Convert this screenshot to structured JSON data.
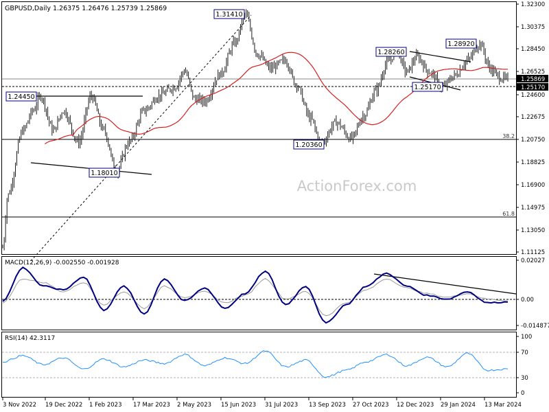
{
  "main": {
    "symbol_line": "GBPUSD,Daily  1.26375 1.26476 1.25739 1.25869",
    "watermark": "ActionForex.com",
    "price_axis": [
      "1.32300",
      "1.30375",
      "1.28450",
      "1.26525",
      "1.24600",
      "1.22675",
      "1.20750",
      "1.18825",
      "1.16900",
      "1.14975",
      "1.13050",
      "1.11125"
    ],
    "current_price": "1.25869",
    "support_price": "1.25170",
    "annotations": {
      "peak": "1.31410",
      "high_dec": "1.28260",
      "high_mar": "1.28920",
      "low_dec": "1.25170",
      "low_oct": "1.20360",
      "low_feb": "1.18010",
      "high_nov": "1.24450"
    },
    "fib_382": "38.2",
    "fib_618": "61.8"
  },
  "macd": {
    "title": "MACD(12,26,9) -0.002550 -0.001928",
    "axis": [
      "0.02027",
      "0.00",
      "-0.014877"
    ]
  },
  "rsi": {
    "title": "RSI(14) 42.3117",
    "axis": [
      "100",
      "70",
      "30",
      "0"
    ]
  },
  "time_axis": [
    "3 Nov 2022",
    "19 Dec 2022",
    "1 Feb 2023",
    "17 Mar 2023",
    "2 May 2023",
    "15 Jun 2023",
    "31 Jul 2023",
    "13 Sep 2023",
    "27 Oct 2023",
    "12 Dec 2023",
    "29 Jan 2024",
    "13 Mar 2024"
  ],
  "colors": {
    "candles": "#1b1b1b",
    "ma": "#d41f1f",
    "macd": "#000080",
    "signal": "#9a9a9a",
    "rsi": "#1e90ff",
    "label_border": "#000080"
  },
  "chart_data": [
    {
      "type": "candlestick",
      "title": "GBPUSD,Daily",
      "x": [
        "3 Nov 2022",
        "19 Dec 2022",
        "1 Feb 2023",
        "17 Mar 2023",
        "2 May 2023",
        "15 Jun 2023",
        "31 Jul 2023",
        "13 Sep 2023",
        "27 Oct 2023",
        "12 Dec 2023",
        "29 Jan 2024",
        "13 Mar 2024"
      ],
      "ylim": [
        1.104,
        1.3265
      ],
      "key_points": [
        {
          "date": "Nov 2022",
          "close": 1.12
        },
        {
          "date": "Dec 2022",
          "high": 1.2445
        },
        {
          "date": "Mar 2023",
          "low": 1.1801
        },
        {
          "date": "Jul 2023",
          "high": 1.3141
        },
        {
          "date": "Oct 2023",
          "low": 1.2036
        },
        {
          "date": "Dec 2023",
          "high": 1.2826
        },
        {
          "date": "Feb 2024",
          "low": 1.2517
        },
        {
          "date": "Mar 2024",
          "high": 1.2892
        },
        {
          "date": "Mar 2024",
          "close": 1.25869
        }
      ],
      "horizontal_levels": [
        1.2445,
        1.2517,
        1.2587,
        1.2075,
        1.143
      ],
      "fibonacci": {
        "38.2": 1.2075,
        "61.8": 1.143
      }
    },
    {
      "type": "line",
      "title": "MACD(12,26,9) -0.002550 -0.001928",
      "ylim": [
        -0.0175,
        0.0215
      ],
      "series": [
        {
          "values": [
            -0.002,
            0.016,
            0.006,
            0.004,
            0.011,
            -0.007,
            0.006,
            -0.009,
            0.01,
            -0.002,
            0.005,
            -0.006,
            0.002,
            0.014,
            -0.004,
            0.006,
            -0.014,
            -0.004,
            0.006,
            0.013,
            0.006,
            0.001,
            -0.001,
            0.003,
            -0.003,
            -0.0026
          ]
        },
        {
          "values": [
            -0.003,
            0.01,
            0.008,
            0.003,
            0.008,
            -0.004,
            0.003,
            -0.006,
            0.006,
            0.0,
            0.003,
            -0.003,
            0.001,
            0.01,
            -0.001,
            0.003,
            -0.01,
            -0.003,
            0.004,
            0.01,
            0.005,
            0.002,
            0.0,
            0.002,
            -0.001,
            -0.0019
          ]
        }
      ]
    },
    {
      "type": "line",
      "title": "RSI(14) 42.3117",
      "ylim": [
        0,
        100
      ],
      "reference_lines": [
        70,
        30
      ],
      "series": [
        {
          "values": [
            55,
            66,
            50,
            62,
            42,
            60,
            46,
            58,
            52,
            68,
            48,
            62,
            52,
            74,
            46,
            58,
            28,
            40,
            55,
            68,
            48,
            63,
            46,
            70,
            40,
            42.3
          ]
        }
      ]
    }
  ]
}
